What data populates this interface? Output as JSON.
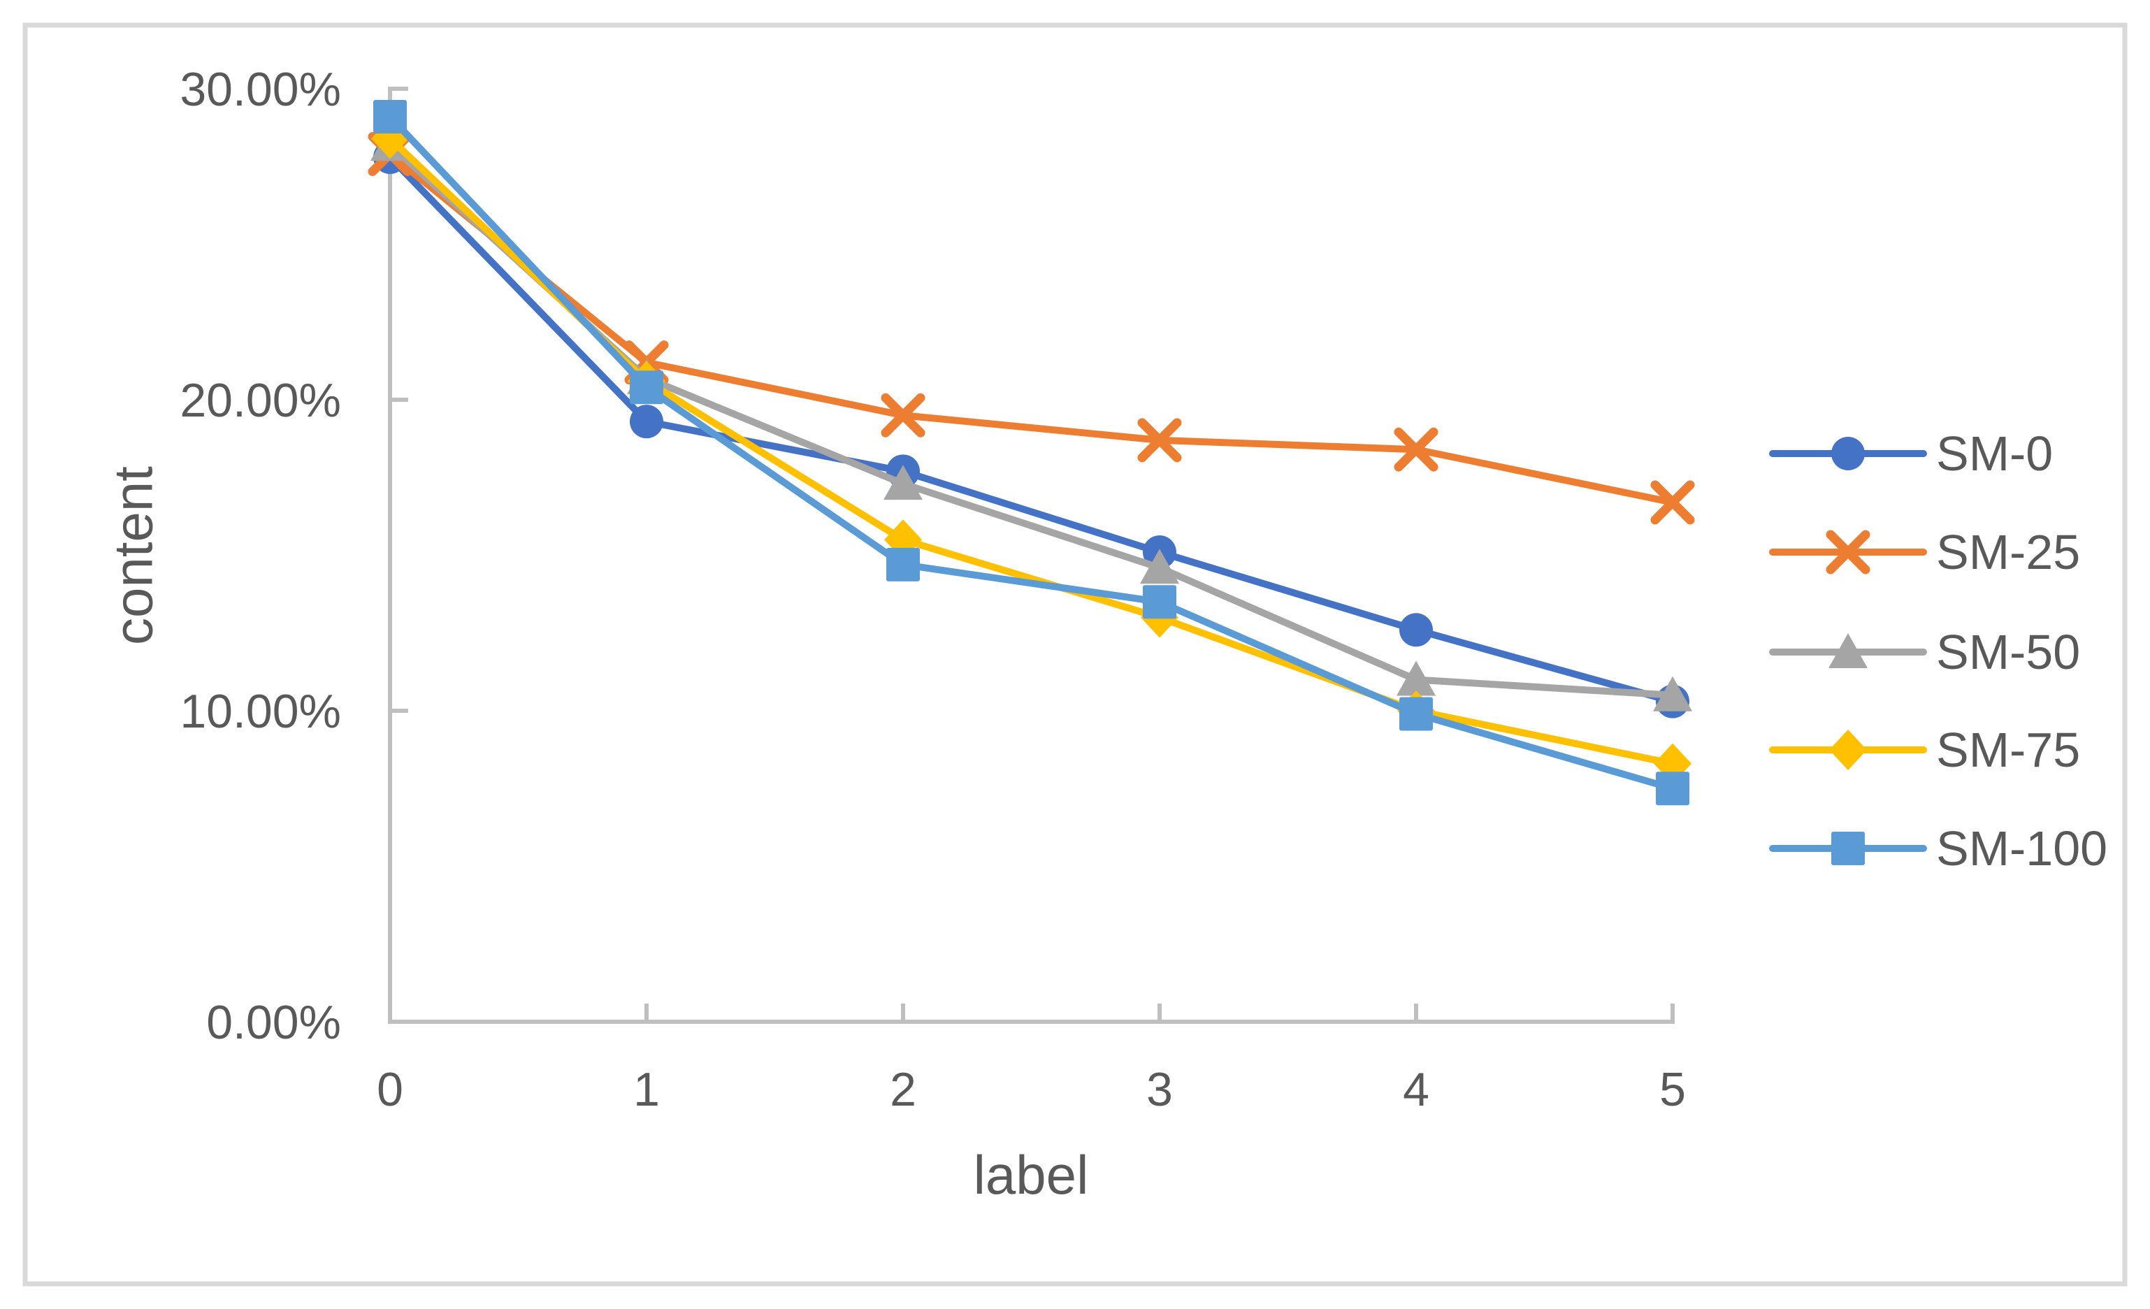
{
  "chart": {
    "y_axis": {
      "title": "content",
      "tick_labels": [
        "30.00%",
        "20.00%",
        "10.00%",
        "0.00%"
      ]
    },
    "x_axis": {
      "title": "label",
      "tick_labels": [
        "0",
        "1",
        "2",
        "3",
        "4",
        "5"
      ]
    },
    "legend": [
      "SM-0",
      "SM-25",
      "SM-50",
      "SM-75",
      "SM-100"
    ]
  },
  "chart_data": {
    "type": "line",
    "title": "",
    "xlabel": "label",
    "ylabel": "content",
    "x": [
      0,
      1,
      2,
      3,
      4,
      5
    ],
    "series": [
      {
        "name": "SM-0",
        "color": "#4472C4",
        "marker": "circle",
        "values_pct": [
          27.8,
          19.3,
          17.7,
          15.1,
          12.6,
          10.3
        ]
      },
      {
        "name": "SM-25",
        "color": "#ED7D31",
        "marker": "x",
        "values_pct": [
          27.9,
          21.2,
          19.5,
          18.7,
          18.4,
          16.7
        ]
      },
      {
        "name": "SM-50",
        "color": "#A5A5A5",
        "marker": "triangle",
        "values_pct": [
          28.2,
          20.7,
          17.3,
          14.6,
          11.0,
          10.5
        ]
      },
      {
        "name": "SM-75",
        "color": "#FFC000",
        "marker": "diamond",
        "values_pct": [
          28.4,
          20.6,
          15.5,
          13.0,
          10.0,
          8.3
        ]
      },
      {
        "name": "SM-100",
        "color": "#5B9BD5",
        "marker": "square",
        "values_pct": [
          29.1,
          20.4,
          14.7,
          13.5,
          9.9,
          7.5
        ]
      }
    ],
    "ylim": [
      0,
      30
    ],
    "xlim": [
      0,
      5
    ],
    "y_tick_step": 10,
    "y_tick_format": "percent_2dp",
    "grid": false,
    "legend_position": "right-middle"
  },
  "colors": {
    "background": "#FFFFFF",
    "axis": "#BFBFBF",
    "text": "#595959",
    "frame_border": "#D9D9D9"
  }
}
